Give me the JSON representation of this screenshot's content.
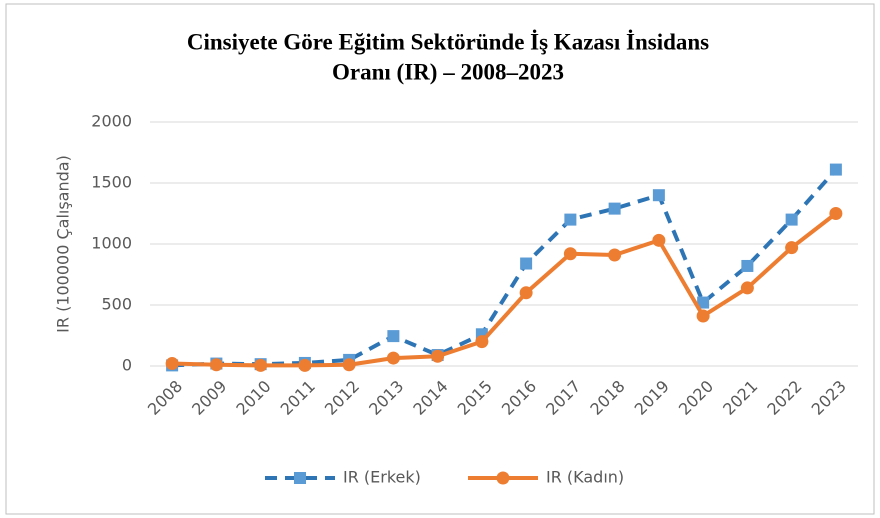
{
  "chart_data": {
    "type": "line",
    "title": [
      "Cinsiyete Göre Eğitim Sektöründe İş Kazası İnsidans",
      "Oranı (IR) – 2008–2023"
    ],
    "y_label": "IR (100000 Çalışanda)",
    "categories": [
      "2008",
      "2009",
      "2010",
      "2011",
      "2012",
      "2013",
      "2014",
      "2015",
      "2016",
      "2017",
      "2018",
      "2019",
      "2020",
      "2021",
      "2022",
      "2023"
    ],
    "series": [
      {
        "name": "IR (Erkek)",
        "color": "#2e75b6",
        "marker_color": "#5b9bd5",
        "marker": "square",
        "dashed": true,
        "values": [
          5,
          20,
          15,
          25,
          50,
          245,
          90,
          260,
          840,
          1200,
          1290,
          1400,
          520,
          820,
          1200,
          1610
        ]
      },
      {
        "name": "IR (Kadın)",
        "color": "#ed7d31",
        "marker_color": "#ed7d31",
        "marker": "circle",
        "dashed": false,
        "values": [
          20,
          10,
          5,
          5,
          10,
          65,
          80,
          200,
          600,
          920,
          910,
          1030,
          410,
          640,
          970,
          1250
        ]
      }
    ],
    "ylim": [
      0,
      2000
    ],
    "yticks": [
      0,
      500,
      1000,
      1500,
      2000
    ],
    "grid": true,
    "legend": "bottom"
  }
}
